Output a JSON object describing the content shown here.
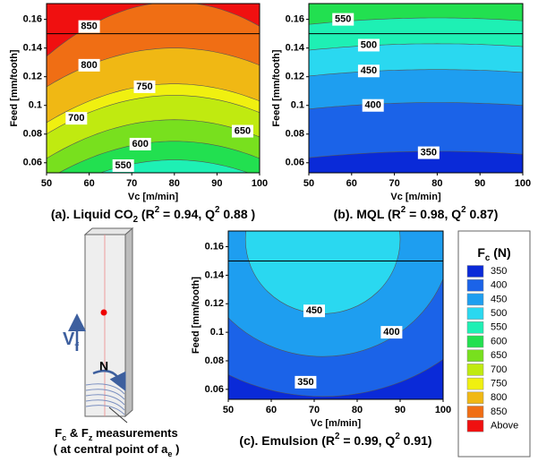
{
  "charts": [
    {
      "type": "contour",
      "x_label": "Vc [m/min]",
      "y_label": "Feed [mm/tooth]",
      "xlim": [
        50,
        100
      ],
      "ylim": [
        0.053,
        0.171
      ],
      "xticks": [
        50,
        60,
        70,
        80,
        90,
        100
      ],
      "yticks": [
        0.06,
        0.08,
        0.1,
        0.12,
        0.14,
        0.16
      ],
      "reference_line": 0.15,
      "contour_levels": [
        550,
        600,
        650,
        700,
        750,
        800,
        850
      ],
      "caption": [
        {
          "text": "(a). Liquid CO"
        },
        {
          "text": "2",
          "style": "sub"
        },
        {
          "text": " (R"
        },
        {
          "text": "2",
          "style": "sup"
        },
        {
          "text": " = 0.94, Q"
        },
        {
          "text": "2",
          "style": "sup"
        },
        {
          "text": " 0.88 )"
        }
      ]
    },
    {
      "type": "contour",
      "x_label": "Vc [m/min]",
      "y_label": "Feed [mm/tooth]",
      "xlim": [
        50,
        100
      ],
      "ylim": [
        0.053,
        0.171
      ],
      "xticks": [
        50,
        60,
        70,
        80,
        90,
        100
      ],
      "yticks": [
        0.06,
        0.08,
        0.1,
        0.12,
        0.14,
        0.16
      ],
      "reference_line": 0.15,
      "contour_levels": [
        350,
        400,
        450,
        500,
        550
      ],
      "caption": [
        {
          "text": "(b). MQL (R"
        },
        {
          "text": "2",
          "style": "sup"
        },
        {
          "text": " = 0.98, Q"
        },
        {
          "text": "2",
          "style": "sup"
        },
        {
          "text": " 0.87)"
        }
      ]
    },
    {
      "type": "contour",
      "x_label": "Vc [m/min]",
      "y_label": "Feed [mm/tooth]",
      "xlim": [
        50,
        100
      ],
      "ylim": [
        0.053,
        0.171
      ],
      "xticks": [
        50,
        60,
        70,
        80,
        90,
        100
      ],
      "yticks": [
        0.06,
        0.08,
        0.1,
        0.12,
        0.14,
        0.16
      ],
      "reference_line": 0.15,
      "contour_levels": [
        350,
        400,
        450
      ],
      "caption": [
        {
          "text": "(c). Emulsion (R"
        },
        {
          "text": "2",
          "style": "sup"
        },
        {
          "text": " = 0.99, Q"
        },
        {
          "text": "2",
          "style": "sup"
        },
        {
          "text": " 0.91)"
        }
      ]
    }
  ],
  "legend": {
    "title": [
      {
        "text": "F"
      },
      {
        "text": "c",
        "style": "sub"
      },
      {
        "text": " (N)"
      }
    ],
    "levels": [
      350,
      400,
      450,
      500,
      550,
      600,
      650,
      700,
      750,
      800,
      850
    ],
    "above_label": "Above",
    "colors": [
      "#0a2ad8",
      "#1b63e8",
      "#1e9ef0",
      "#2ad8f0",
      "#1ef0b4",
      "#22e050",
      "#78e01e",
      "#c0ea10",
      "#f0f010",
      "#f0b814",
      "#f06e14",
      "#f01010"
    ]
  },
  "diagram": {
    "feed_label": [
      {
        "text": "V"
      },
      {
        "text": "f",
        "style": "sub"
      }
    ],
    "rotation_label": "N",
    "note_line1": [
      {
        "text": "F"
      },
      {
        "text": "c",
        "style": "sub"
      },
      {
        "text": " & F"
      },
      {
        "text": "z",
        "style": "sub"
      },
      {
        "text": " measurements"
      }
    ],
    "note_line2": [
      {
        "text": "( at central point of a"
      },
      {
        "text": "e",
        "style": "sub"
      },
      {
        "text": " )"
      }
    ]
  }
}
